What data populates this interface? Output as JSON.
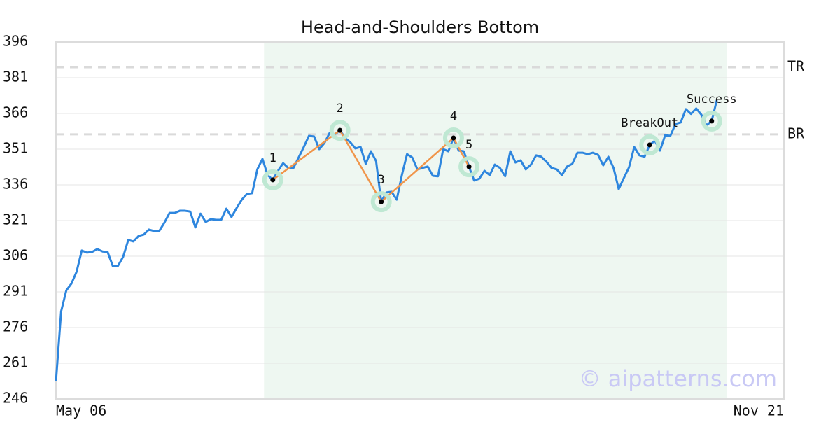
{
  "chart_data": {
    "type": "line",
    "title": "Head-and-Shoulders Bottom",
    "watermark": "© aipatterns.com",
    "color": "#2e86de",
    "values": [
      253.4,
      282.8,
      291.6,
      294.5,
      299.5,
      308.4,
      307.5,
      307.8,
      309,
      308,
      307.8,
      301.9,
      301.9,
      305.7,
      312.8,
      312.2,
      314.5,
      315.1,
      317.2,
      316.6,
      316.6,
      320.1,
      324.2,
      324.2,
      325.1,
      325.1,
      324.8,
      318.1,
      323.9,
      320.4,
      321.6,
      321.3,
      321.3,
      326,
      322.5,
      326.3,
      329.8,
      332.2,
      332.5,
      342.5,
      346.9,
      340.1,
      338.1,
      341.9,
      345.1,
      343.1,
      343.1,
      347.5,
      351.9,
      356.6,
      356.3,
      351,
      353.6,
      357.8,
      357.2,
      358.9,
      355.7,
      353.9,
      351.3,
      351.9,
      344.8,
      350.1,
      346,
      328.9,
      332.8,
      333.1,
      329.8,
      340.1,
      348.9,
      347.5,
      342.5,
      343.1,
      343.7,
      339.8,
      339.6,
      351,
      350.1,
      355.7,
      350.4,
      350.1,
      343.6,
      337.8,
      338.6,
      341.9,
      340.1,
      344.5,
      343.1,
      339.6,
      350.1,
      345.4,
      346.3,
      342.5,
      344.5,
      348.4,
      347.8,
      345.7,
      343.1,
      342.5,
      340.1,
      343.7,
      344.8,
      349.5,
      349.5,
      348.9,
      349.5,
      348.6,
      344.2,
      347.8,
      343.1,
      334.2,
      338.9,
      343.4,
      351.9,
      348.4,
      347.8,
      352.8,
      354.5,
      350.4,
      356.9,
      356.6,
      361.6,
      362.2,
      367.8,
      365.8,
      368.1,
      365.5,
      361,
      362.8,
      371.6
    ],
    "xlim": [
      0,
      141
    ],
    "xticks": [
      {
        "value": 0,
        "label": "May 06"
      },
      {
        "value": 141,
        "label": "Nov 21"
      }
    ],
    "ylim": [
      246,
      396
    ],
    "yticks": [
      246,
      261,
      276,
      291,
      306,
      321,
      336,
      351,
      366,
      381,
      396
    ],
    "grid": true,
    "highlight": [
      40.3,
      130
    ],
    "pattern_color": "#f0954a",
    "pattern": [
      {
        "label": "1",
        "x": 42,
        "y": 338.1
      },
      {
        "label": "2",
        "x": 55,
        "y": 358.9
      },
      {
        "label": "3",
        "x": 63,
        "y": 328.9
      },
      {
        "label": "4",
        "x": 77,
        "y": 355.7
      },
      {
        "label": "5",
        "x": 80,
        "y": 343.6
      }
    ],
    "events": [
      {
        "label": "BreakOut",
        "x": 115,
        "y": 352.8
      },
      {
        "label": "Success",
        "x": 127,
        "y": 362.8
      }
    ],
    "reference_lines": [
      {
        "label": "TR",
        "value": 385.4
      },
      {
        "label": "BR",
        "value": 357.2
      }
    ]
  }
}
